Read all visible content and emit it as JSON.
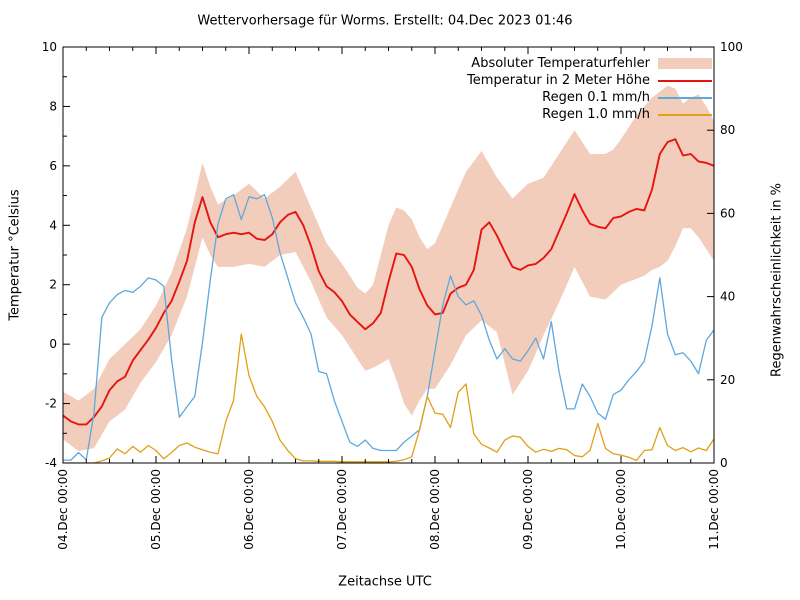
{
  "chart_data": {
    "type": "line",
    "title": "Wettervorhersage für Worms. Erstellt: 04.Dec 2023 01:46",
    "x_axis": {
      "label": "Zeitachse UTC",
      "tick_labels": [
        "04.Dec 00:00",
        "05.Dec 00:00",
        "06.Dec 00:00",
        "07.Dec 00:00",
        "08.Dec 00:00",
        "09.Dec 00:00",
        "10.Dec 00:00",
        "11.Dec 00:00"
      ],
      "minor_ticks_per_day": 4
    },
    "y_left": {
      "label": "Temperatur °Celsius",
      "min": -4,
      "max": 10,
      "ticks": [
        -4,
        -2,
        0,
        2,
        4,
        6,
        8,
        10
      ]
    },
    "y_right": {
      "label": "Regenwahrscheinlichkeit in %",
      "min": 0,
      "max": 100,
      "ticks": [
        0,
        20,
        40,
        60,
        80,
        100
      ]
    },
    "time_step_hours": 2,
    "legend_position": "top-right",
    "grid": false,
    "series": [
      {
        "name": "Absoluter Temperaturfehler",
        "type": "band",
        "axis": "left",
        "color": "#f2cdbb",
        "upper": [
          -1.6,
          -1.75,
          -1.9,
          -1.7,
          -1.5,
          -1.0,
          -0.5,
          -0.25,
          0.0,
          0.25,
          0.5,
          0.9,
          1.3,
          1.85,
          2.4,
          3.15,
          3.9,
          5.0,
          6.1,
          5.3,
          4.7,
          4.85,
          5.0,
          5.2,
          5.4,
          5.15,
          4.9,
          5.1,
          5.3,
          5.55,
          5.8,
          5.2,
          4.6,
          4.0,
          3.4,
          3.05,
          2.7,
          2.3,
          1.9,
          1.7,
          2.0,
          3.0,
          4.0,
          4.6,
          4.5,
          4.2,
          3.6,
          3.2,
          3.4,
          4.0,
          4.6,
          5.2,
          5.8,
          6.15,
          6.5,
          6.05,
          5.6,
          5.25,
          4.9,
          5.15,
          5.4,
          5.5,
          5.6,
          6.0,
          6.4,
          6.8,
          7.2,
          6.8,
          6.4,
          6.4,
          6.4,
          6.55,
          6.9,
          7.3,
          7.7,
          8.0,
          8.3,
          8.5,
          8.7,
          8.6,
          8.1,
          8.3,
          8.4,
          8.0,
          7.5
        ],
        "lower": [
          -3.2,
          -3.4,
          -3.6,
          -3.55,
          -3.5,
          -3.05,
          -2.6,
          -2.4,
          -2.2,
          -1.75,
          -1.3,
          -0.95,
          -0.6,
          -0.15,
          0.3,
          0.95,
          1.6,
          2.6,
          3.6,
          3.0,
          2.6,
          2.6,
          2.6,
          2.65,
          2.7,
          2.65,
          2.6,
          2.8,
          3.0,
          3.05,
          3.1,
          2.6,
          2.1,
          1.5,
          0.9,
          0.6,
          0.3,
          -0.1,
          -0.5,
          -0.9,
          -0.8,
          -0.65,
          -0.5,
          -1.2,
          -2.0,
          -2.4,
          -1.9,
          -1.5,
          -1.5,
          -1.1,
          -0.7,
          -0.2,
          0.3,
          0.55,
          0.8,
          0.6,
          0.4,
          -0.65,
          -1.7,
          -1.3,
          -0.9,
          -0.3,
          0.3,
          0.85,
          1.4,
          2.0,
          2.6,
          2.1,
          1.6,
          1.55,
          1.5,
          1.75,
          2.0,
          2.1,
          2.2,
          2.3,
          2.5,
          2.6,
          2.8,
          3.3,
          3.9,
          3.9,
          3.6,
          3.2,
          2.8
        ]
      },
      {
        "name": "Temperatur in 2 Meter Höhe",
        "type": "line",
        "axis": "left",
        "color": "#e61410",
        "values": [
          -2.4,
          -2.6,
          -2.7,
          -2.7,
          -2.45,
          -2.1,
          -1.55,
          -1.25,
          -1.1,
          -0.55,
          -0.2,
          0.15,
          0.55,
          1.05,
          1.45,
          2.1,
          2.8,
          4.1,
          4.95,
          4.1,
          3.6,
          3.7,
          3.75,
          3.7,
          3.75,
          3.55,
          3.5,
          3.7,
          4.1,
          4.35,
          4.45,
          4.0,
          3.3,
          2.45,
          1.95,
          1.75,
          1.45,
          1.0,
          0.75,
          0.5,
          0.7,
          1.05,
          2.1,
          3.05,
          3.0,
          2.6,
          1.85,
          1.3,
          1.0,
          1.05,
          1.7,
          1.9,
          2.0,
          2.5,
          3.85,
          4.1,
          3.65,
          3.1,
          2.6,
          2.5,
          2.65,
          2.7,
          2.9,
          3.2,
          3.8,
          4.4,
          5.05,
          4.5,
          4.05,
          3.95,
          3.9,
          4.25,
          4.3,
          4.45,
          4.55,
          4.5,
          5.2,
          6.4,
          6.8,
          6.9,
          6.35,
          6.4,
          6.15,
          6.1,
          6.0
        ]
      },
      {
        "name": "Regen 0.1 mm/h",
        "type": "line",
        "axis": "right",
        "color": "#5fa8dc",
        "values": [
          0.7,
          0.7,
          2.5,
          0.8,
          12,
          35,
          38.5,
          40.5,
          41.5,
          41,
          42.5,
          44.5,
          44,
          42.5,
          25,
          11,
          13.5,
          16,
          29,
          44,
          57.5,
          63.5,
          64.5,
          58.5,
          64,
          63.5,
          64.5,
          59,
          50.5,
          44.5,
          38.5,
          35,
          31,
          22,
          21.5,
          15,
          10,
          5,
          4,
          5.5,
          3.5,
          3,
          3,
          3,
          5,
          6.5,
          8,
          16,
          27,
          38,
          45,
          40,
          38,
          39,
          35.5,
          29.5,
          25,
          27.5,
          25,
          24.5,
          27,
          30,
          25,
          34,
          22,
          13,
          13,
          19,
          16,
          12,
          10.5,
          16.5,
          17.5,
          20,
          22,
          24.5,
          33,
          44.5,
          31,
          26,
          26.5,
          24.5,
          21.5,
          29.5,
          32
        ]
      },
      {
        "name": "Regen 1.0 mm/h",
        "type": "line",
        "axis": "right",
        "color": "#e0a018",
        "values": [
          0,
          0,
          0,
          0,
          0,
          0.5,
          1.2,
          3.4,
          2.2,
          4.0,
          2.6,
          4.2,
          3.0,
          1.0,
          2.5,
          4.2,
          4.8,
          3.8,
          3.2,
          2.6,
          2.2,
          10,
          15,
          31,
          21,
          16,
          13.5,
          10,
          5.5,
          3,
          1,
          0.5,
          0.5,
          0.4,
          0.4,
          0.4,
          0.3,
          0.3,
          0.3,
          0.3,
          0.3,
          0.3,
          0.3,
          0.4,
          0.8,
          1.5,
          8,
          16,
          12,
          11.7,
          8.5,
          17,
          19,
          7,
          4.5,
          3.6,
          2.6,
          5.5,
          6.5,
          6.2,
          4,
          2.6,
          3.3,
          2.8,
          3.5,
          3.2,
          1.8,
          1.5,
          3,
          9.5,
          3.5,
          2.2,
          1.9,
          1.4,
          0.6,
          3,
          3.2,
          8.5,
          4.2,
          3,
          3.7,
          2.7,
          3.6,
          3,
          5.8
        ]
      }
    ]
  }
}
